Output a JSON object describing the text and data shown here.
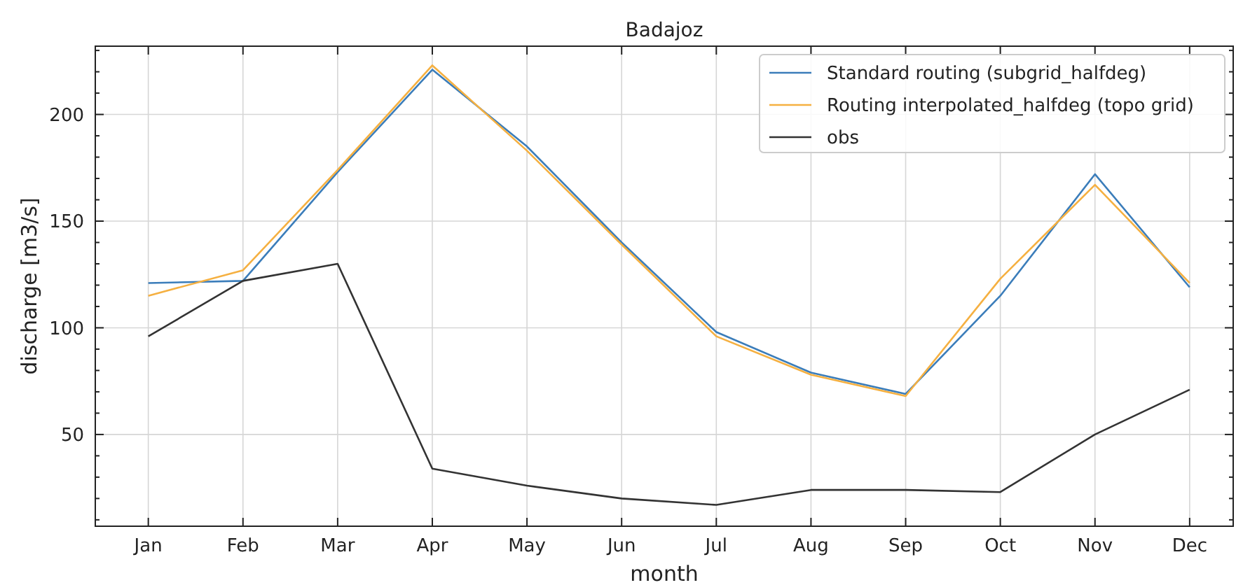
{
  "chart_data": {
    "type": "line",
    "title": "Badajoz",
    "xlabel": "month",
    "ylabel": "discharge [m3/s]",
    "categories": [
      "Jan",
      "Feb",
      "Mar",
      "Apr",
      "May",
      "Jun",
      "Jul",
      "Aug",
      "Sep",
      "Oct",
      "Nov",
      "Dec"
    ],
    "series": [
      {
        "name": "Standard routing (subgrid_halfdeg)",
        "color": "#3b7dba",
        "values": [
          121,
          122,
          173,
          221,
          185,
          140,
          98,
          79,
          69,
          115,
          172,
          119
        ]
      },
      {
        "name": "Routing interpolated_halfdeg (topo grid)",
        "color": "#f5b041",
        "values": [
          115,
          127,
          174,
          223,
          183,
          139,
          96,
          78,
          68,
          123,
          167,
          121
        ]
      },
      {
        "name": "obs",
        "color": "#333333",
        "values": [
          96,
          122,
          130,
          34,
          26,
          20,
          17,
          24,
          24,
          23,
          50,
          71
        ]
      }
    ],
    "ylim": [
      7,
      232
    ],
    "yticks": [
      {
        "value": 10,
        "label": null
      },
      {
        "value": 20,
        "label": null
      },
      {
        "value": 30,
        "label": null
      },
      {
        "value": 40,
        "label": null
      },
      50,
      {
        "value": 60,
        "label": null
      },
      {
        "value": 70,
        "label": null
      },
      {
        "value": 80,
        "label": null
      },
      {
        "value": 90,
        "label": null
      },
      100,
      {
        "value": 110,
        "label": null
      },
      {
        "value": 120,
        "label": null
      },
      {
        "value": 130,
        "label": null
      },
      {
        "value": 140,
        "label": null
      },
      150,
      {
        "value": 160,
        "label": null
      },
      {
        "value": 170,
        "label": null
      },
      {
        "value": 180,
        "label": null
      },
      {
        "value": 190,
        "label": null
      },
      200,
      {
        "value": 210,
        "label": null
      },
      {
        "value": 220,
        "label": null
      },
      {
        "value": 230,
        "label": null
      }
    ],
    "grid": true,
    "legend": "top right"
  }
}
